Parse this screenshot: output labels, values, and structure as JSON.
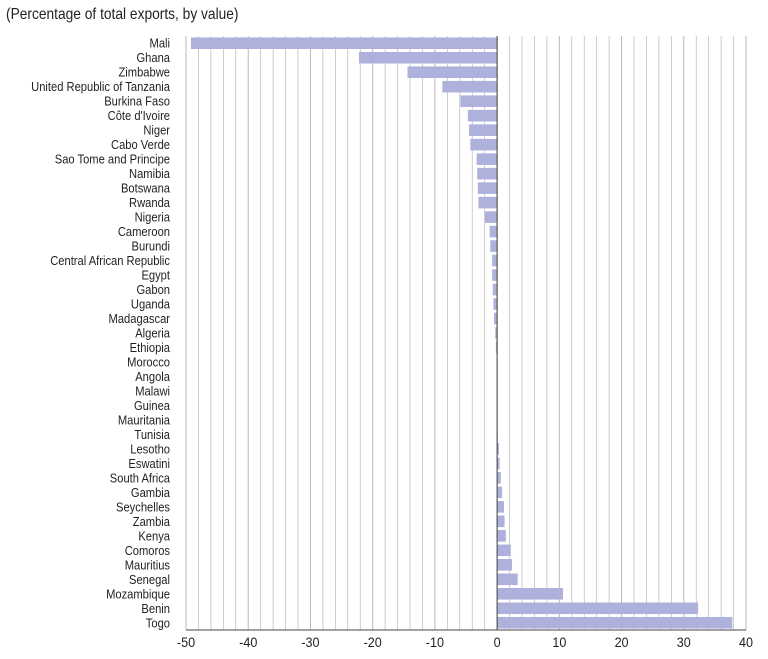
{
  "subtitle": "(Percentage of total exports, by value)",
  "chart_data": {
    "type": "bar",
    "orientation": "horizontal",
    "title": "(Percentage of total exports, by value)",
    "xlabel": "",
    "ylabel": "",
    "xlim": [
      -50,
      40
    ],
    "xticks": [
      -50,
      -40,
      -30,
      -20,
      -10,
      0,
      10,
      20,
      30,
      40
    ],
    "grid": true,
    "bar_color": "#aeb1dc",
    "grid_color": "#b8b8b8",
    "categories": [
      "Mali",
      "Ghana",
      "Zimbabwe",
      "United Republic of Tanzania",
      "Burkina Faso",
      "Côte d'Ivoire",
      "Niger",
      "Cabo Verde",
      "Sao Tome and Principe",
      "Namibia",
      "Botswana",
      "Rwanda",
      "Nigeria",
      "Cameroon",
      "Burundi",
      "Central African Republic",
      "Egypt",
      "Gabon",
      "Uganda",
      "Madagascar",
      "Algeria",
      "Ethiopia",
      "Morocco",
      "Angola",
      "Malawi",
      "Guinea",
      "Mauritania",
      "Tunisia",
      "Lesotho",
      "Eswatini",
      "South Africa",
      "Gambia",
      "Seychelles",
      "Zambia",
      "Kenya",
      "Comoros",
      "Mauritius",
      "Senegal",
      "Mozambique",
      "Benin",
      "Togo"
    ],
    "values": [
      -49.2,
      -22.2,
      -14.4,
      -8.8,
      -5.9,
      -4.7,
      -4.5,
      -4.3,
      -3.3,
      -3.2,
      -3.1,
      -3.0,
      -2.0,
      -1.2,
      -1.1,
      -0.8,
      -0.8,
      -0.7,
      -0.6,
      -0.5,
      -0.3,
      -0.2,
      -0.1,
      -0.1,
      -0.1,
      -0.1,
      -0.1,
      0.1,
      0.3,
      0.4,
      0.6,
      0.8,
      1.1,
      1.2,
      1.4,
      2.2,
      2.4,
      3.3,
      10.6,
      32.3,
      37.8
    ]
  }
}
